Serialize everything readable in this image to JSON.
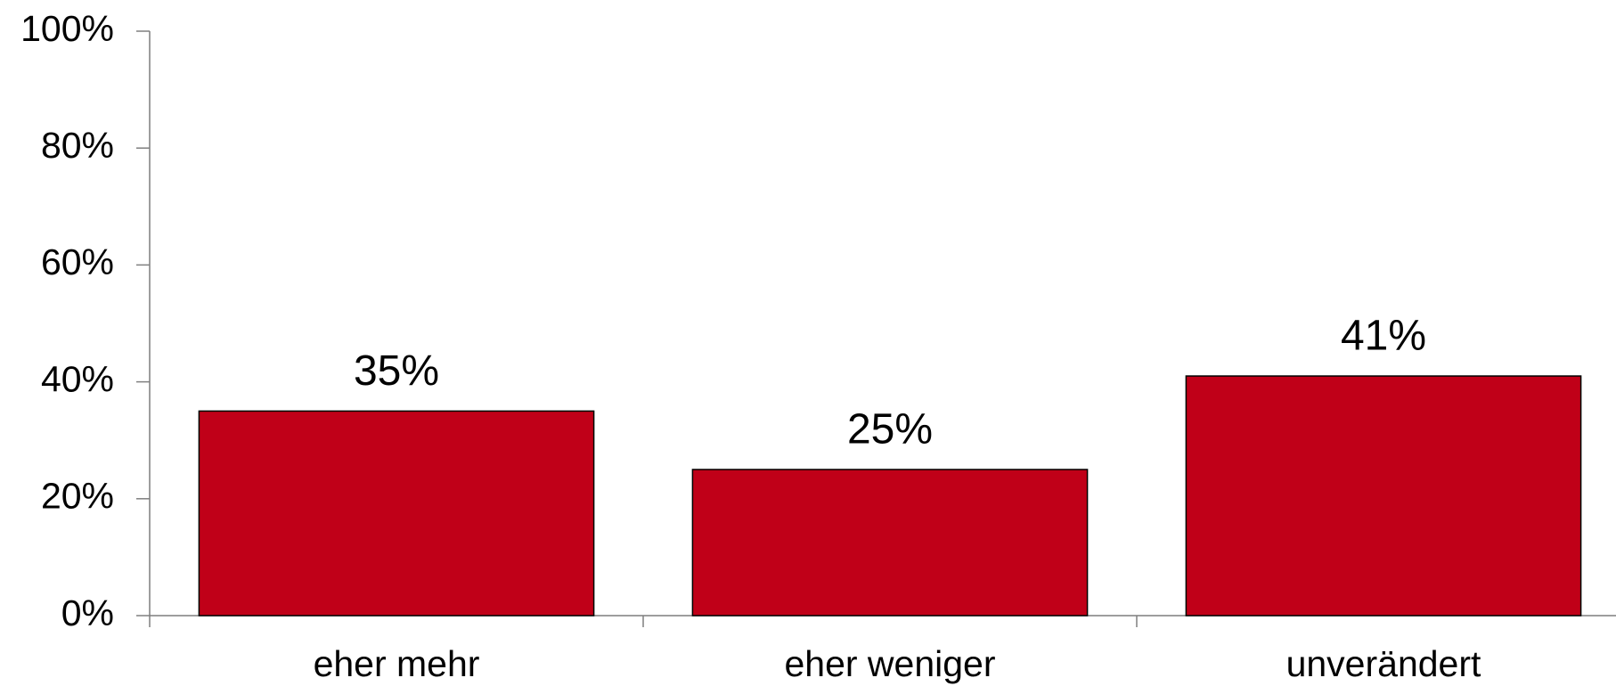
{
  "chart_data": {
    "type": "bar",
    "categories": [
      "eher mehr",
      "eher weniger",
      "unverändert"
    ],
    "values": [
      35,
      25,
      41
    ],
    "value_labels": [
      "35%",
      "25%",
      "41%"
    ],
    "color": "#c00018",
    "ylim": [
      0,
      100
    ],
    "yticks": [
      {
        "value": 0,
        "label": "0%"
      },
      {
        "value": 20,
        "label": "20%"
      },
      {
        "value": 40,
        "label": "40%"
      },
      {
        "value": 60,
        "label": "60%"
      },
      {
        "value": 80,
        "label": "80%"
      },
      {
        "value": 100,
        "label": "100%"
      }
    ],
    "grid": false
  }
}
